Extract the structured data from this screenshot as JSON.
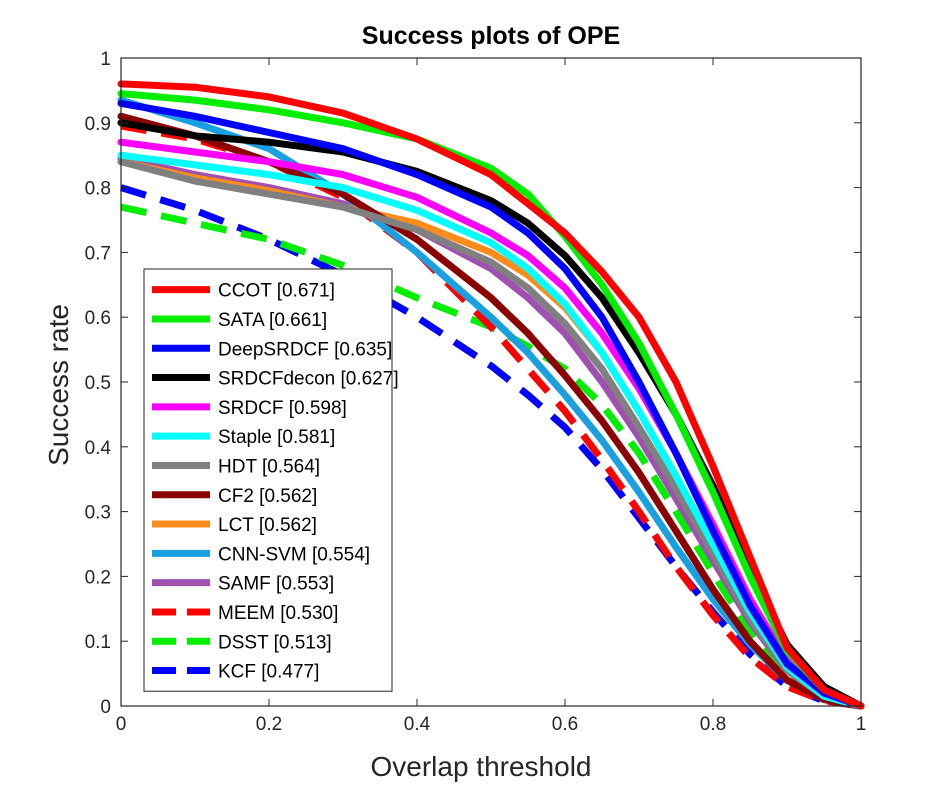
{
  "chart_data": {
    "type": "line",
    "title": "Success plots of OPE",
    "xlabel": "Overlap threshold",
    "ylabel": "Success rate",
    "xlim": [
      0,
      1
    ],
    "ylim": [
      0,
      1
    ],
    "x_ticks": [
      "0",
      "0.2",
      "0.4",
      "0.6",
      "0.8",
      "1"
    ],
    "y_ticks": [
      "0",
      "0.1",
      "0.2",
      "0.3",
      "0.4",
      "0.5",
      "0.6",
      "0.7",
      "0.8",
      "0.9",
      "1"
    ],
    "legend_position": "bottom-left",
    "x": [
      0,
      0.1,
      0.2,
      0.3,
      0.4,
      0.5,
      0.55,
      0.6,
      0.65,
      0.7,
      0.75,
      0.8,
      0.85,
      0.9,
      0.95,
      1.0
    ],
    "series": [
      {
        "name": "CCOT [0.671]",
        "color": "#ff0000",
        "dashed": false,
        "values": [
          0.96,
          0.955,
          0.94,
          0.915,
          0.875,
          0.82,
          0.775,
          0.73,
          0.67,
          0.6,
          0.5,
          0.37,
          0.23,
          0.09,
          0.025,
          0.0
        ]
      },
      {
        "name": "SATA [0.661]",
        "color": "#00ee00",
        "dashed": false,
        "values": [
          0.945,
          0.935,
          0.92,
          0.9,
          0.875,
          0.83,
          0.79,
          0.725,
          0.65,
          0.56,
          0.45,
          0.33,
          0.2,
          0.085,
          0.025,
          0.0
        ]
      },
      {
        "name": "DeepSRDCF [0.635]",
        "color": "#0000ff",
        "dashed": false,
        "values": [
          0.93,
          0.91,
          0.885,
          0.86,
          0.82,
          0.77,
          0.73,
          0.675,
          0.6,
          0.5,
          0.39,
          0.27,
          0.155,
          0.065,
          0.02,
          0.0
        ]
      },
      {
        "name": "SRDCFdecon [0.627]",
        "color": "#000000",
        "dashed": false,
        "values": [
          0.9,
          0.88,
          0.87,
          0.855,
          0.825,
          0.78,
          0.745,
          0.695,
          0.63,
          0.545,
          0.45,
          0.34,
          0.21,
          0.095,
          0.03,
          0.0
        ]
      },
      {
        "name": "SRDCF [0.598]",
        "color": "#ff00ff",
        "dashed": false,
        "values": [
          0.87,
          0.855,
          0.84,
          0.82,
          0.785,
          0.73,
          0.695,
          0.645,
          0.575,
          0.49,
          0.39,
          0.28,
          0.165,
          0.07,
          0.02,
          0.0
        ]
      },
      {
        "name": "Staple [0.581]",
        "color": "#00ffff",
        "dashed": false,
        "values": [
          0.85,
          0.835,
          0.82,
          0.8,
          0.765,
          0.715,
          0.675,
          0.62,
          0.545,
          0.455,
          0.355,
          0.25,
          0.145,
          0.06,
          0.015,
          0.0
        ]
      },
      {
        "name": "HDT [0.564]",
        "color": "#808080",
        "dashed": false,
        "values": [
          0.84,
          0.81,
          0.79,
          0.77,
          0.735,
          0.685,
          0.645,
          0.59,
          0.52,
          0.43,
          0.335,
          0.235,
          0.135,
          0.055,
          0.015,
          0.0
        ]
      },
      {
        "name": "CF2 [0.562]",
        "color": "#8b0000",
        "dashed": false,
        "values": [
          0.91,
          0.88,
          0.84,
          0.79,
          0.72,
          0.63,
          0.575,
          0.51,
          0.44,
          0.36,
          0.27,
          0.18,
          0.1,
          0.04,
          0.01,
          0.0
        ]
      },
      {
        "name": "LCT [0.562]",
        "color": "#ff8c1a",
        "dashed": false,
        "values": [
          0.84,
          0.815,
          0.795,
          0.77,
          0.745,
          0.7,
          0.665,
          0.615,
          0.545,
          0.455,
          0.355,
          0.245,
          0.14,
          0.055,
          0.015,
          0.0
        ]
      },
      {
        "name": "CNN-SVM [0.554]",
        "color": "#1a9fe0",
        "dashed": false,
        "values": [
          0.935,
          0.9,
          0.86,
          0.79,
          0.7,
          0.6,
          0.545,
          0.48,
          0.41,
          0.33,
          0.245,
          0.165,
          0.095,
          0.04,
          0.01,
          0.0
        ]
      },
      {
        "name": "SAMF [0.553]",
        "color": "#a050b0",
        "dashed": false,
        "values": [
          0.845,
          0.82,
          0.8,
          0.775,
          0.735,
          0.675,
          0.63,
          0.575,
          0.5,
          0.415,
          0.32,
          0.225,
          0.13,
          0.055,
          0.015,
          0.0
        ]
      },
      {
        "name": "MEEM [0.530]",
        "color": "#ff0000",
        "dashed": true,
        "values": [
          0.895,
          0.875,
          0.84,
          0.785,
          0.7,
          0.585,
          0.52,
          0.455,
          0.38,
          0.3,
          0.215,
          0.14,
          0.075,
          0.03,
          0.008,
          0.0
        ]
      },
      {
        "name": "DSST [0.513]",
        "color": "#00ee00",
        "dashed": true,
        "values": [
          0.77,
          0.745,
          0.72,
          0.68,
          0.63,
          0.585,
          0.555,
          0.52,
          0.465,
          0.39,
          0.3,
          0.205,
          0.115,
          0.045,
          0.012,
          0.0
        ]
      },
      {
        "name": "KCF [0.477]",
        "color": "#0000ff",
        "dashed": true,
        "values": [
          0.8,
          0.765,
          0.72,
          0.665,
          0.6,
          0.525,
          0.48,
          0.43,
          0.365,
          0.29,
          0.215,
          0.145,
          0.08,
          0.03,
          0.008,
          0.0
        ]
      }
    ]
  }
}
